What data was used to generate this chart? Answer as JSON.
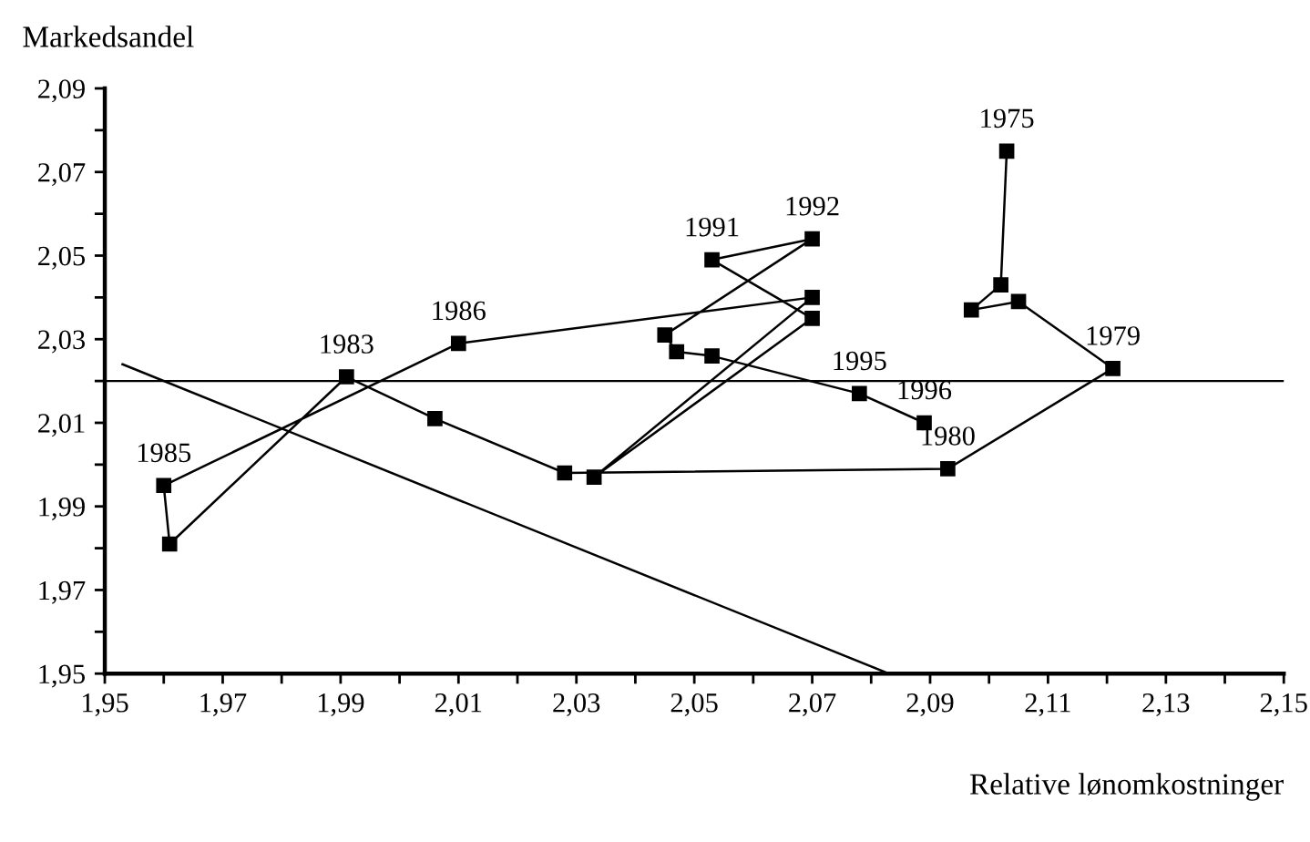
{
  "chart_data": {
    "type": "line",
    "xlabel": "Relative lønomkostninger",
    "ylabel": "Markedsandel",
    "series": [
      {
        "color": "#000000",
        "marker": "square",
        "x": [
          2.103,
          2.102,
          2.097,
          2.105,
          2.121,
          2.093,
          2.028,
          2.006,
          1.991,
          1.961,
          1.96,
          2.01,
          2.07,
          2.033,
          2.07,
          2.053,
          2.07,
          2.045,
          2.047,
          2.053,
          2.078,
          2.089
        ],
        "values": [
          2.075,
          2.043,
          2.037,
          2.039,
          2.023,
          1.999,
          1.998,
          2.011,
          2.021,
          1.981,
          1.995,
          2.029,
          2.04,
          1.997,
          2.035,
          2.049,
          2.054,
          2.031,
          2.027,
          2.026,
          2.017,
          2.01
        ]
      },
      {
        "color": "#000000",
        "marker": "none",
        "x": [
          1.953,
          2.083
        ],
        "values": [
          2.024,
          1.95
        ]
      }
    ],
    "ref_lines": [
      {
        "axis": "y",
        "value": 2.02,
        "color": "#000000"
      }
    ],
    "annotations": [
      {
        "text": "1975",
        "x": 2.103,
        "y": 2.075
      },
      {
        "text": "1979",
        "x": 2.121,
        "y": 2.023
      },
      {
        "text": "1980",
        "x": 2.093,
        "y": 1.999
      },
      {
        "text": "1983",
        "x": 1.991,
        "y": 2.021
      },
      {
        "text": "1985",
        "x": 1.96,
        "y": 1.995
      },
      {
        "text": "1986",
        "x": 2.01,
        "y": 2.029
      },
      {
        "text": "1991",
        "x": 2.053,
        "y": 2.049
      },
      {
        "text": "1992",
        "x": 2.07,
        "y": 2.054
      },
      {
        "text": "1995",
        "x": 2.078,
        "y": 2.017
      },
      {
        "text": "1996",
        "x": 2.089,
        "y": 2.01
      }
    ],
    "xlim": [
      1.95,
      2.15
    ],
    "ylim": [
      1.95,
      2.09
    ],
    "xticks": [
      {
        "value": 1.95,
        "label": "1,95"
      },
      {
        "value": 1.96,
        "label": null
      },
      {
        "value": 1.97,
        "label": "1,97"
      },
      {
        "value": 1.98,
        "label": null
      },
      {
        "value": 1.99,
        "label": "1,99"
      },
      {
        "value": 2.0,
        "label": null
      },
      {
        "value": 2.01,
        "label": "2,01"
      },
      {
        "value": 2.02,
        "label": null
      },
      {
        "value": 2.03,
        "label": "2,03"
      },
      {
        "value": 2.04,
        "label": null
      },
      {
        "value": 2.05,
        "label": "2,05"
      },
      {
        "value": 2.06,
        "label": null
      },
      {
        "value": 2.07,
        "label": "2,07"
      },
      {
        "value": 2.08,
        "label": null
      },
      {
        "value": 2.09,
        "label": "2,09"
      },
      {
        "value": 2.1,
        "label": null
      },
      {
        "value": 2.11,
        "label": "2,11"
      },
      {
        "value": 2.12,
        "label": null
      },
      {
        "value": 2.13,
        "label": "2,13"
      },
      {
        "value": 2.14,
        "label": null
      },
      {
        "value": 2.15,
        "label": "2,15"
      }
    ],
    "yticks": [
      {
        "value": 1.95,
        "label": "1,95"
      },
      {
        "value": 1.96,
        "label": null
      },
      {
        "value": 1.97,
        "label": "1,97"
      },
      {
        "value": 1.98,
        "label": null
      },
      {
        "value": 1.99,
        "label": "1,99"
      },
      {
        "value": 2.0,
        "label": null
      },
      {
        "value": 2.01,
        "label": "2,01"
      },
      {
        "value": 2.02,
        "label": null
      },
      {
        "value": 2.03,
        "label": "2,03"
      },
      {
        "value": 2.04,
        "label": null
      },
      {
        "value": 2.05,
        "label": "2,05"
      },
      {
        "value": 2.06,
        "label": null
      },
      {
        "value": 2.07,
        "label": "2,07"
      },
      {
        "value": 2.08,
        "label": null
      },
      {
        "value": 2.09,
        "label": "2,09"
      }
    ],
    "grid": false,
    "legend": false
  }
}
